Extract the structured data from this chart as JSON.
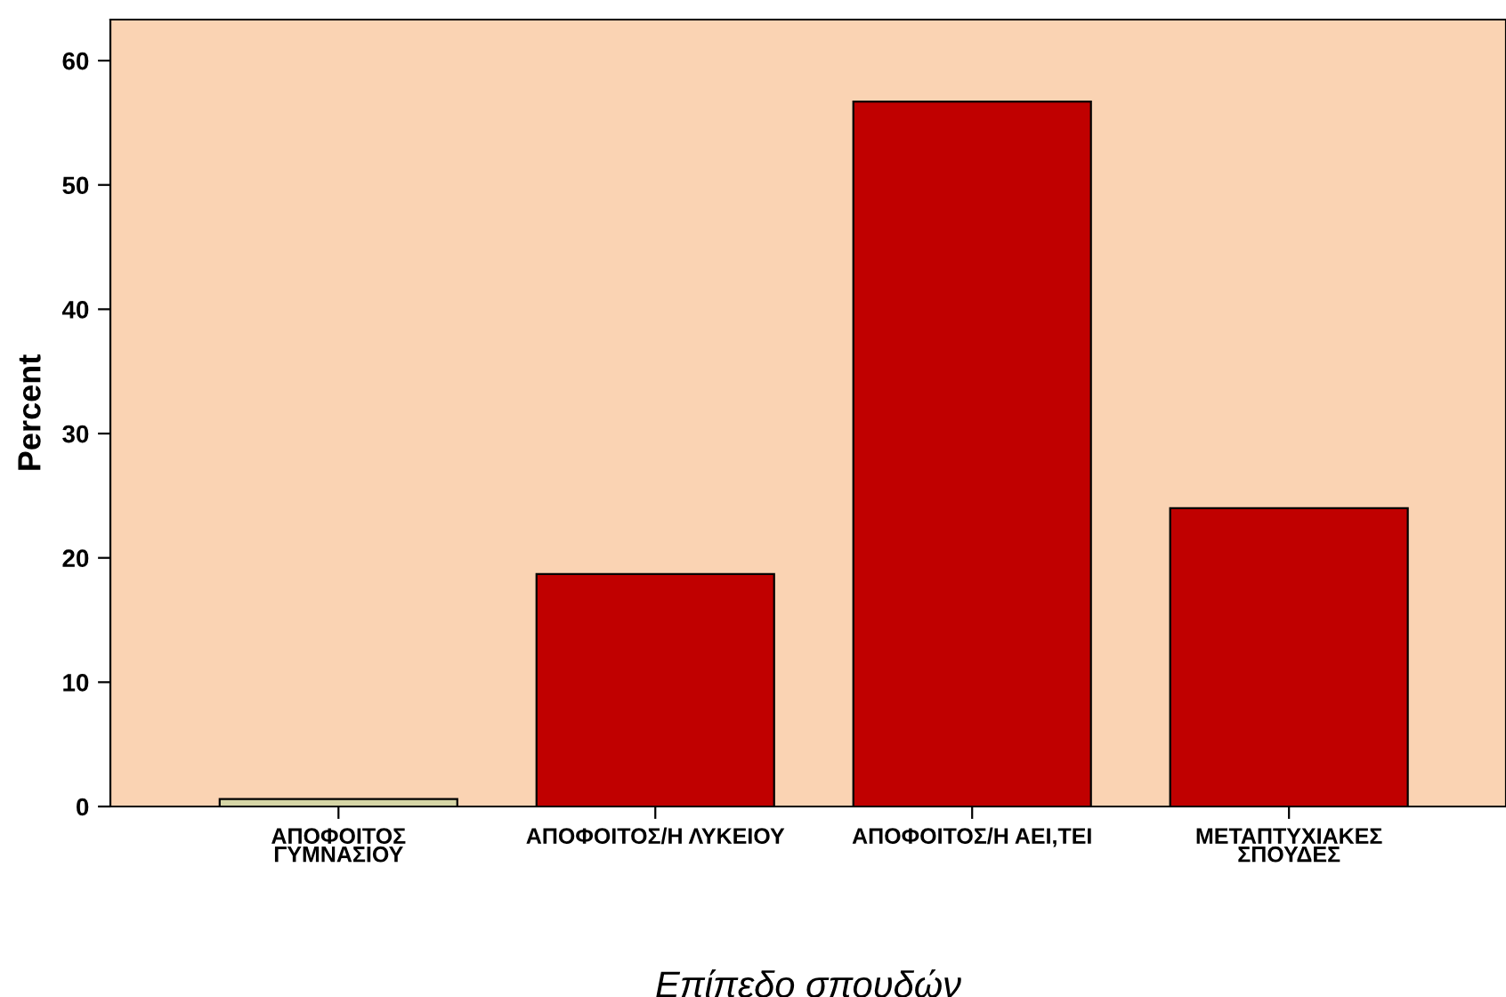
{
  "chart_data": {
    "type": "bar",
    "xlabel": "Επίπεδο σπουδών",
    "ylabel": "Percent",
    "categories": [
      "ΑΠΟΦΟΙΤΟΣ\nΓΥΜΝΑΣΙΟΥ",
      "ΑΠΟΦΟΙΤΟΣ/Η ΛΥΚΕΙΟΥ",
      "ΑΠΟΦΟΙΤΟΣ/Η ΑΕΙ,ΤΕΙ",
      "ΜΕΤΑΠΤΥΧΙΑΚΕΣ\nΣΠΟΥΔΕΣ"
    ],
    "values": [
      0.6,
      18.7,
      56.7,
      24.0
    ],
    "colors": [
      "#d6d6a6",
      "#c00000",
      "#c00000",
      "#c00000"
    ],
    "ylim": [
      0,
      63.3
    ],
    "yticks": [
      0,
      10,
      20,
      30,
      40,
      50,
      60
    ],
    "grid": false
  }
}
